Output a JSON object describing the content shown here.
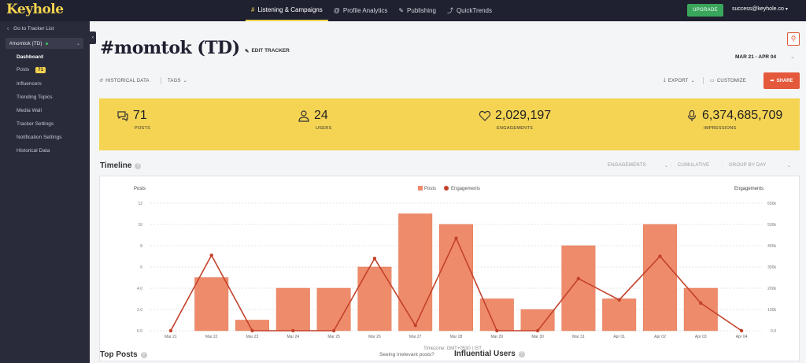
{
  "brand": "Keyhole",
  "topnav": {
    "tabs": [
      {
        "label": "Listening & Campaigns",
        "icon": "hash-icon",
        "active": true
      },
      {
        "label": "Profile Analytics",
        "icon": "at-icon"
      },
      {
        "label": "Publishing",
        "icon": "pencil-icon"
      },
      {
        "label": "QuickTrends",
        "icon": "trend-icon"
      }
    ],
    "upgrade_label": "UPGRADE",
    "user_email": "success@keyhole.co"
  },
  "sidebar": {
    "back_label": "Go to Tracker List",
    "tracker_name": "#momtok (TD)",
    "items": [
      {
        "label": "Dashboard",
        "active": true
      },
      {
        "label": "Posts",
        "badge": "71"
      },
      {
        "label": "Influencers"
      },
      {
        "label": "Trending Topics"
      },
      {
        "label": "Media Wall"
      },
      {
        "label": "Tracker Settings"
      },
      {
        "label": "Notification Settings"
      },
      {
        "label": "Historical Data"
      }
    ]
  },
  "header": {
    "title": "#momtok (TD)",
    "edit_label": "EDIT TRACKER",
    "date_range": "MAR 21 - APR 04"
  },
  "toolbar": {
    "historical": "HISTORICAL DATA",
    "tags": "TAGS",
    "export": "EXPORT",
    "customize": "CUSTOMIZE",
    "share": "SHARE"
  },
  "stats": [
    {
      "value": "71",
      "label": "POSTS",
      "icon": "speech-bubbles-icon"
    },
    {
      "value": "24",
      "label": "USERS",
      "icon": "user-icon"
    },
    {
      "value": "2,029,197",
      "label": "ENGAGEMENTS",
      "icon": "heart-icon"
    },
    {
      "value": "6,374,685,709",
      "label": "IMPRESSIONS",
      "icon": "microphone-icon"
    }
  ],
  "timeline": {
    "title": "Timeline",
    "controls": {
      "metric": "ENGAGEMENTS",
      "mode": "CUMULATIVE",
      "group": "GROUP BY DAY"
    },
    "timezone": "Timezone: GMT+0530 | IST"
  },
  "chart_data": {
    "type": "bar",
    "categories": [
      "Mar 21",
      "Mar 22",
      "Mar 23",
      "Mar 24",
      "Mar 25",
      "Mar 26",
      "Mar 27",
      "Mar 28",
      "Mar 29",
      "Mar 30",
      "Mar 31",
      "Apr 01",
      "Apr 02",
      "Apr 03",
      "Apr 04"
    ],
    "series": [
      {
        "name": "Posts",
        "type": "bar",
        "axis": "left",
        "color": "#ee8b6b",
        "values": [
          0,
          5,
          1,
          4,
          4,
          6,
          11,
          10,
          3,
          2,
          8,
          3,
          10,
          4,
          0
        ]
      },
      {
        "name": "Engagements",
        "type": "line",
        "axis": "right",
        "color": "#c4412a",
        "values": [
          0,
          355000,
          0,
          0,
          0,
          340000,
          25000,
          435000,
          0,
          0,
          245000,
          145000,
          350000,
          130000,
          0
        ]
      }
    ],
    "ylabel_left": "Posts",
    "ylabel_right": "Engagements",
    "ylim_left": [
      0,
      12
    ],
    "yticks_left": [
      "0.0",
      "2.0",
      "4.0",
      "6",
      "8",
      "10",
      "12"
    ],
    "ylim_right": [
      0,
      600000
    ],
    "yticks_right": [
      "0.0",
      "100k",
      "200k",
      "300k",
      "400k",
      "500k",
      "600k"
    ],
    "legend": "top-center",
    "grid": true
  },
  "bottom": {
    "top_posts": "Top Posts",
    "irrelevant": "Seeing irrelevant posts?",
    "influential_users": "Influential Users"
  }
}
